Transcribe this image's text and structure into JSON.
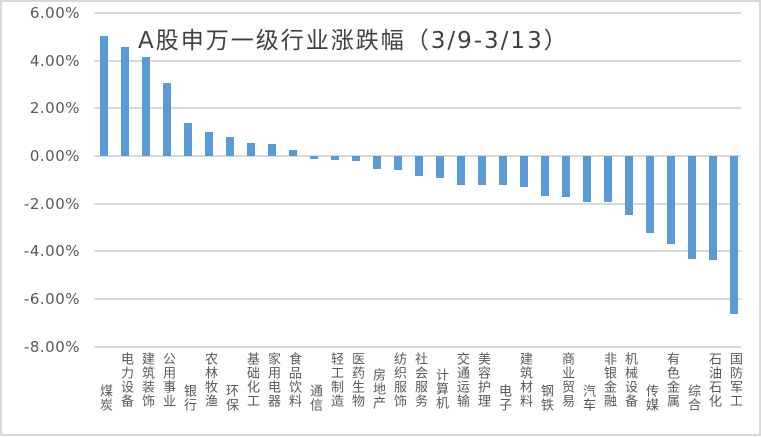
{
  "chart_data": {
    "type": "bar",
    "title": "A股申万一级行业涨跌幅（3/9-3/13）",
    "xlabel": "",
    "ylabel": "",
    "ylim": [
      -0.08,
      0.06
    ],
    "yticks": [
      "6.00%",
      "4.00%",
      "2.00%",
      "0.00%",
      "-2.00%",
      "-4.00%",
      "-6.00%",
      "-8.00%"
    ],
    "ytick_values": [
      0.06,
      0.04,
      0.02,
      0.0,
      -0.02,
      -0.04,
      -0.06,
      -0.08
    ],
    "grid": true,
    "legend": null,
    "bar_color": "#5b9bd5",
    "categories": [
      "煤炭",
      "电力设备",
      "建筑装饰",
      "公用事业",
      "银行",
      "农林牧渔",
      "环保",
      "基础化工",
      "家用电器",
      "食品饮料",
      "通信",
      "轻工制造",
      "医药生物",
      "房地产",
      "纺织服饰",
      "社会服务",
      "计算机",
      "交通运输",
      "美容护理",
      "电子",
      "建筑材料",
      "钢铁",
      "商业贸易",
      "汽车",
      "非银金融",
      "机械设备",
      "传媒",
      "有色金属",
      "综合",
      "石油石化",
      "国防军工"
    ],
    "values": [
      5.05,
      4.59,
      4.13,
      3.07,
      1.39,
      1.02,
      0.8,
      0.54,
      0.5,
      0.26,
      -0.12,
      -0.16,
      -0.22,
      -0.55,
      -0.58,
      -0.83,
      -0.91,
      -1.21,
      -1.21,
      -1.21,
      -1.29,
      -1.68,
      -1.72,
      -1.93,
      -1.93,
      -2.47,
      -3.22,
      -3.68,
      -4.3,
      -4.34,
      -6.64
    ],
    "value_unit": "%"
  }
}
